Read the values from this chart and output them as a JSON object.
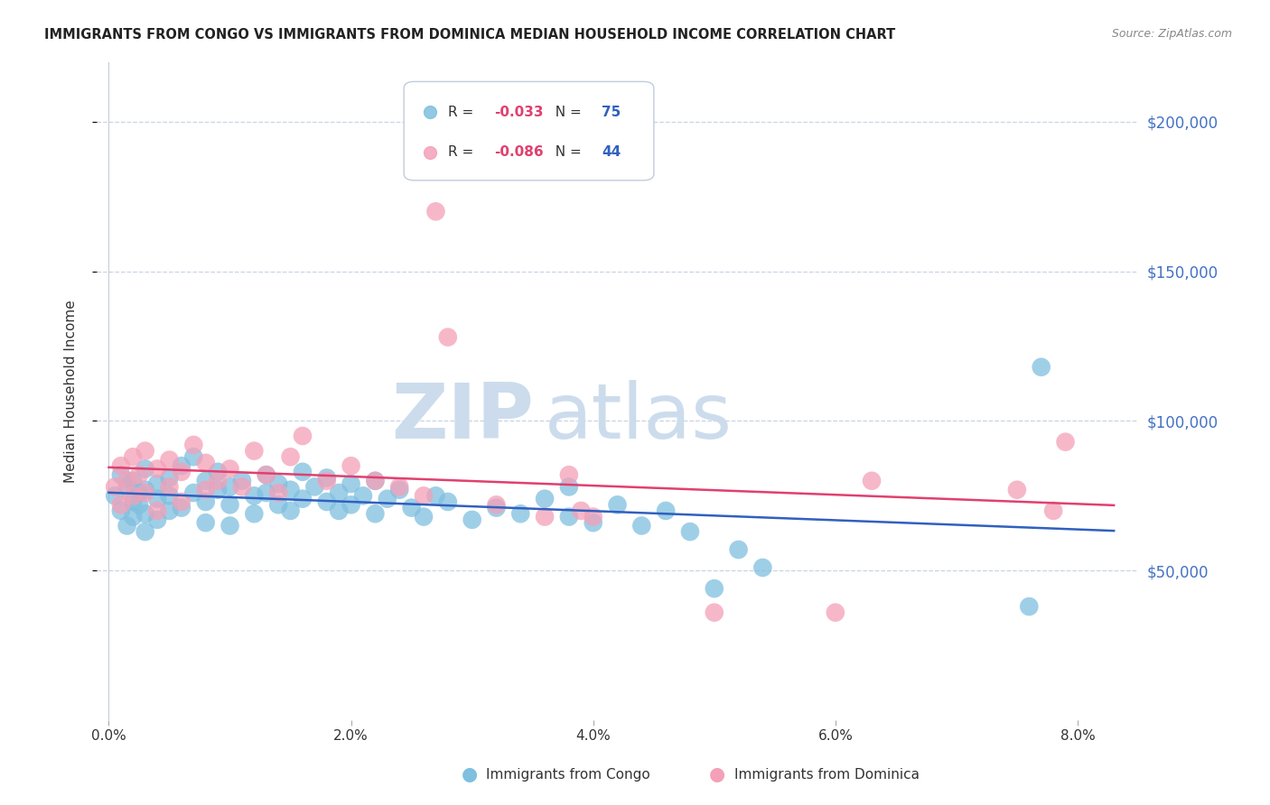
{
  "title": "IMMIGRANTS FROM CONGO VS IMMIGRANTS FROM DOMINICA MEDIAN HOUSEHOLD INCOME CORRELATION CHART",
  "source": "Source: ZipAtlas.com",
  "ylabel": "Median Household Income",
  "ylim": [
    0,
    220000
  ],
  "xlim": [
    -0.001,
    0.085
  ],
  "congo_R": "-0.033",
  "congo_N": "75",
  "dominica_R": "-0.086",
  "dominica_N": "44",
  "congo_color": "#7fbfdf",
  "dominica_color": "#f4a0b8",
  "congo_line_color": "#3060c0",
  "dominica_line_color": "#e04070",
  "watermark_zip": "ZIP",
  "watermark_atlas": "atlas",
  "watermark_color": "#ccdcec",
  "axis_label_color": "#4472c4",
  "grid_color": "#c8d4e4",
  "congo_x": [
    0.0005,
    0.001,
    0.001,
    0.0015,
    0.0015,
    0.002,
    0.002,
    0.002,
    0.0025,
    0.0025,
    0.003,
    0.003,
    0.003,
    0.003,
    0.004,
    0.004,
    0.004,
    0.005,
    0.005,
    0.005,
    0.006,
    0.006,
    0.007,
    0.007,
    0.008,
    0.008,
    0.008,
    0.009,
    0.009,
    0.01,
    0.01,
    0.01,
    0.011,
    0.012,
    0.012,
    0.013,
    0.013,
    0.014,
    0.014,
    0.015,
    0.015,
    0.016,
    0.016,
    0.017,
    0.018,
    0.018,
    0.019,
    0.019,
    0.02,
    0.02,
    0.021,
    0.022,
    0.022,
    0.023,
    0.024,
    0.025,
    0.026,
    0.027,
    0.028,
    0.03,
    0.032,
    0.034,
    0.036,
    0.038,
    0.038,
    0.04,
    0.042,
    0.044,
    0.046,
    0.048,
    0.05,
    0.052,
    0.054,
    0.076,
    0.077
  ],
  "congo_y": [
    75000,
    82000,
    70000,
    78000,
    65000,
    80000,
    73000,
    68000,
    76000,
    72000,
    84000,
    77000,
    69000,
    63000,
    79000,
    74000,
    67000,
    81000,
    75000,
    70000,
    85000,
    71000,
    88000,
    76000,
    80000,
    73000,
    66000,
    83000,
    77000,
    78000,
    72000,
    65000,
    80000,
    75000,
    69000,
    82000,
    76000,
    79000,
    72000,
    77000,
    70000,
    83000,
    74000,
    78000,
    81000,
    73000,
    76000,
    70000,
    79000,
    72000,
    75000,
    80000,
    69000,
    74000,
    77000,
    71000,
    68000,
    75000,
    73000,
    67000,
    71000,
    69000,
    74000,
    68000,
    78000,
    66000,
    72000,
    65000,
    70000,
    63000,
    44000,
    57000,
    51000,
    38000,
    118000
  ],
  "dominica_x": [
    0.0005,
    0.001,
    0.001,
    0.0015,
    0.002,
    0.002,
    0.0025,
    0.003,
    0.003,
    0.004,
    0.004,
    0.005,
    0.005,
    0.006,
    0.006,
    0.007,
    0.008,
    0.008,
    0.009,
    0.01,
    0.011,
    0.012,
    0.013,
    0.014,
    0.015,
    0.016,
    0.018,
    0.02,
    0.022,
    0.024,
    0.026,
    0.027,
    0.028,
    0.032,
    0.036,
    0.038,
    0.039,
    0.04,
    0.05,
    0.06,
    0.063,
    0.075,
    0.078,
    0.079
  ],
  "dominica_y": [
    78000,
    85000,
    72000,
    80000,
    88000,
    75000,
    82000,
    90000,
    76000,
    84000,
    70000,
    87000,
    78000,
    83000,
    73000,
    92000,
    86000,
    77000,
    80000,
    84000,
    78000,
    90000,
    82000,
    76000,
    88000,
    95000,
    80000,
    85000,
    80000,
    78000,
    75000,
    170000,
    128000,
    72000,
    68000,
    82000,
    70000,
    68000,
    36000,
    36000,
    80000,
    77000,
    70000,
    93000
  ]
}
